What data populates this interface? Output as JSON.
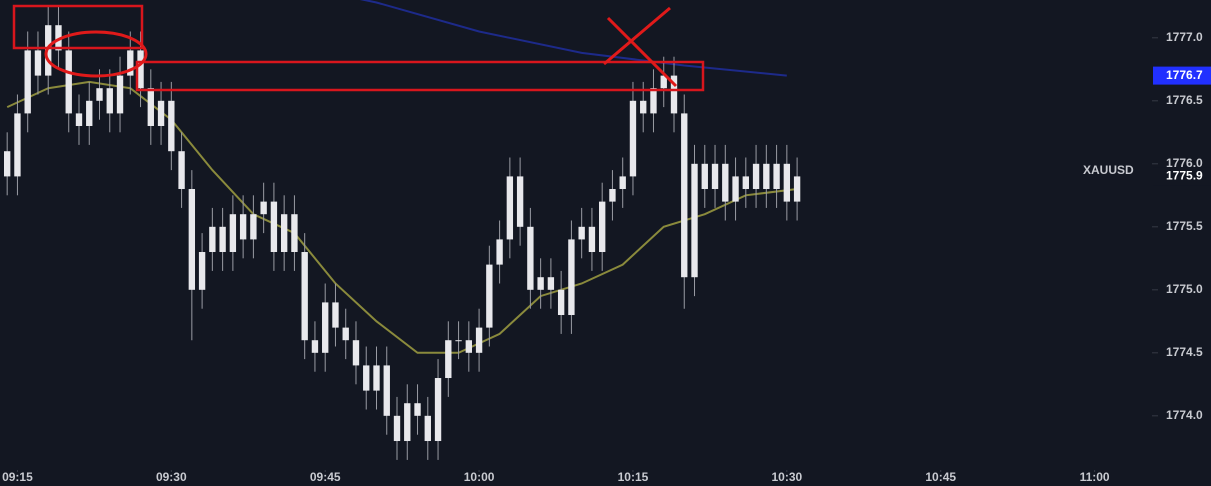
{
  "chart_data": {
    "type": "candlestick",
    "symbol": "XAUUSD",
    "x": [
      14,
      15,
      16,
      17,
      18,
      19,
      20,
      21,
      22,
      23,
      24,
      25,
      26,
      27,
      28,
      29,
      30,
      31,
      32,
      33,
      34,
      35,
      36,
      37,
      38,
      39,
      40,
      41,
      42,
      43,
      44,
      45,
      46,
      47,
      48,
      49,
      50,
      51,
      52,
      53,
      54,
      55,
      56,
      57,
      58,
      59,
      60,
      61,
      62,
      63,
      64,
      65,
      66,
      67,
      68,
      69,
      70,
      71,
      72,
      73,
      74,
      75,
      76,
      77,
      78,
      79,
      80,
      81,
      82,
      83,
      84,
      85,
      86,
      87,
      88,
      89,
      90,
      91
    ],
    "open": [
      1776.1,
      1775.9,
      1776.4,
      1776.9,
      1776.7,
      1777.1,
      1776.9,
      1776.4,
      1776.3,
      1776.5,
      1776.6,
      1776.4,
      1776.7,
      1776.9,
      1776.6,
      1776.3,
      1776.5,
      1776.1,
      1775.8,
      1775.0,
      1775.3,
      1775.5,
      1775.3,
      1775.6,
      1775.4,
      1775.6,
      1775.7,
      1775.3,
      1775.6,
      1775.3,
      1774.6,
      1774.5,
      1774.9,
      1774.7,
      1774.6,
      1774.4,
      1774.2,
      1774.4,
      1774.0,
      1773.8,
      1774.1,
      1774.0,
      1773.8,
      1774.3,
      1774.6,
      1774.6,
      1774.5,
      1774.7,
      1775.2,
      1775.4,
      1775.9,
      1775.5,
      1775.0,
      1775.1,
      1775.0,
      1774.8,
      1775.4,
      1775.5,
      1775.3,
      1775.7,
      1775.8,
      1775.9,
      1776.5,
      1776.4,
      1776.6,
      1776.7,
      1776.4,
      1775.1,
      1776.0,
      1775.8,
      1776.0,
      1775.7,
      1775.9,
      1775.8,
      1776.0,
      1775.8,
      1776.0,
      1775.7
    ],
    "high": [
      1776.25,
      1776.55,
      1777.05,
      1777.05,
      1777.25,
      1777.25,
      1777.05,
      1776.55,
      1776.65,
      1776.75,
      1776.75,
      1776.85,
      1777.05,
      1777.05,
      1776.75,
      1776.65,
      1776.65,
      1776.25,
      1775.95,
      1775.45,
      1775.65,
      1775.65,
      1775.75,
      1775.75,
      1775.75,
      1775.85,
      1775.85,
      1775.75,
      1775.75,
      1775.45,
      1774.75,
      1775.05,
      1775.05,
      1774.85,
      1774.75,
      1774.55,
      1774.55,
      1774.55,
      1774.15,
      1774.25,
      1774.25,
      1774.15,
      1774.45,
      1774.75,
      1774.75,
      1774.75,
      1774.85,
      1775.35,
      1775.55,
      1776.05,
      1776.05,
      1775.65,
      1775.25,
      1775.25,
      1775.15,
      1775.55,
      1775.65,
      1775.65,
      1775.85,
      1775.95,
      1776.05,
      1776.65,
      1776.65,
      1776.75,
      1776.85,
      1776.85,
      1776.55,
      1776.15,
      1776.15,
      1776.15,
      1776.15,
      1776.05,
      1776.05,
      1776.15,
      1776.15,
      1776.15,
      1776.15,
      1776.05
    ],
    "low": [
      1775.75,
      1775.75,
      1776.25,
      1776.55,
      1776.55,
      1776.75,
      1776.25,
      1776.15,
      1776.15,
      1776.35,
      1776.25,
      1776.25,
      1776.55,
      1776.45,
      1776.15,
      1776.15,
      1775.95,
      1775.65,
      1774.6,
      1774.85,
      1775.15,
      1775.15,
      1775.15,
      1775.25,
      1775.25,
      1775.45,
      1775.15,
      1775.15,
      1775.15,
      1774.45,
      1774.35,
      1774.35,
      1774.55,
      1774.45,
      1774.25,
      1774.05,
      1774.05,
      1773.85,
      1773.65,
      1773.65,
      1773.85,
      1773.65,
      1773.65,
      1774.15,
      1774.45,
      1774.35,
      1774.35,
      1774.55,
      1775.05,
      1775.25,
      1775.35,
      1774.85,
      1774.85,
      1774.85,
      1774.65,
      1774.65,
      1775.25,
      1775.15,
      1775.15,
      1775.55,
      1775.65,
      1775.75,
      1776.25,
      1776.25,
      1776.45,
      1776.25,
      1774.85,
      1774.95,
      1775.65,
      1775.65,
      1775.55,
      1775.55,
      1775.65,
      1775.65,
      1775.65,
      1775.65,
      1775.55,
      1775.55
    ],
    "close": [
      1775.9,
      1776.4,
      1776.9,
      1776.7,
      1777.1,
      1776.9,
      1776.4,
      1776.3,
      1776.5,
      1776.6,
      1776.4,
      1776.7,
      1776.9,
      1776.6,
      1776.3,
      1776.5,
      1776.1,
      1775.8,
      1775.0,
      1775.3,
      1775.5,
      1775.3,
      1775.6,
      1775.4,
      1775.6,
      1775.7,
      1775.3,
      1775.6,
      1775.3,
      1774.6,
      1774.5,
      1774.9,
      1774.7,
      1774.6,
      1774.4,
      1774.2,
      1774.4,
      1774.0,
      1773.8,
      1774.1,
      1774.0,
      1773.8,
      1774.3,
      1774.6,
      1774.6,
      1774.5,
      1774.7,
      1775.2,
      1775.4,
      1775.9,
      1775.5,
      1775.0,
      1775.1,
      1775.0,
      1774.8,
      1775.4,
      1775.5,
      1775.3,
      1775.7,
      1775.8,
      1775.9,
      1776.5,
      1776.4,
      1776.6,
      1776.7,
      1776.4,
      1775.1,
      1776.0,
      1775.8,
      1776.0,
      1775.7,
      1775.9,
      1775.8,
      1776.0,
      1775.8,
      1776.0,
      1775.7,
      1775.9
    ],
    "color": "#e8e8ec",
    "overlays": [
      {
        "color": "#8a8a3c",
        "x": [
          14,
          18,
          22,
          26,
          30,
          34,
          38,
          42,
          46,
          50,
          54,
          58,
          62,
          66,
          70,
          74,
          78,
          82,
          86,
          91
        ],
        "values": [
          1776.45,
          1776.6,
          1776.65,
          1776.6,
          1776.35,
          1775.95,
          1775.6,
          1775.45,
          1775.05,
          1774.75,
          1774.5,
          1774.5,
          1774.65,
          1774.95,
          1775.05,
          1775.2,
          1775.5,
          1775.6,
          1775.75,
          1775.8
        ]
      },
      {
        "color": "#1d2a8a",
        "x": [
          43,
          50,
          60,
          70,
          80,
          90
        ],
        "values": [
          1777.4,
          1777.28,
          1777.05,
          1776.88,
          1776.78,
          1776.7
        ]
      }
    ],
    "markers": [
      {
        "value": 1776.7,
        "label": "1776.7",
        "color": "#2130ff"
      },
      {
        "value": 1775.9,
        "label": "1775.9",
        "color": "#131722"
      }
    ],
    "xlim": [
      13.3,
      125.4
    ],
    "xticks": [
      {
        "value": 15,
        "label": "09:15"
      },
      {
        "value": 30,
        "label": "09:30"
      },
      {
        "value": 45,
        "label": "09:45"
      },
      {
        "value": 60,
        "label": "10:00"
      },
      {
        "value": 75,
        "label": "10:15"
      },
      {
        "value": 90,
        "label": "10:30"
      },
      {
        "value": 105,
        "label": "10:45"
      },
      {
        "value": 120,
        "label": "11:00"
      }
    ],
    "ylim": [
      1773.57,
      1777.3
    ],
    "yticks": [
      {
        "value": 1774,
        "label": "1774.0"
      },
      1774.5,
      {
        "value": 1775,
        "label": "1775.0"
      },
      1775.5,
      {
        "value": 1776,
        "label": "1776.0"
      },
      1776.5,
      {
        "value": 1777,
        "label": "1777.0"
      }
    ]
  }
}
